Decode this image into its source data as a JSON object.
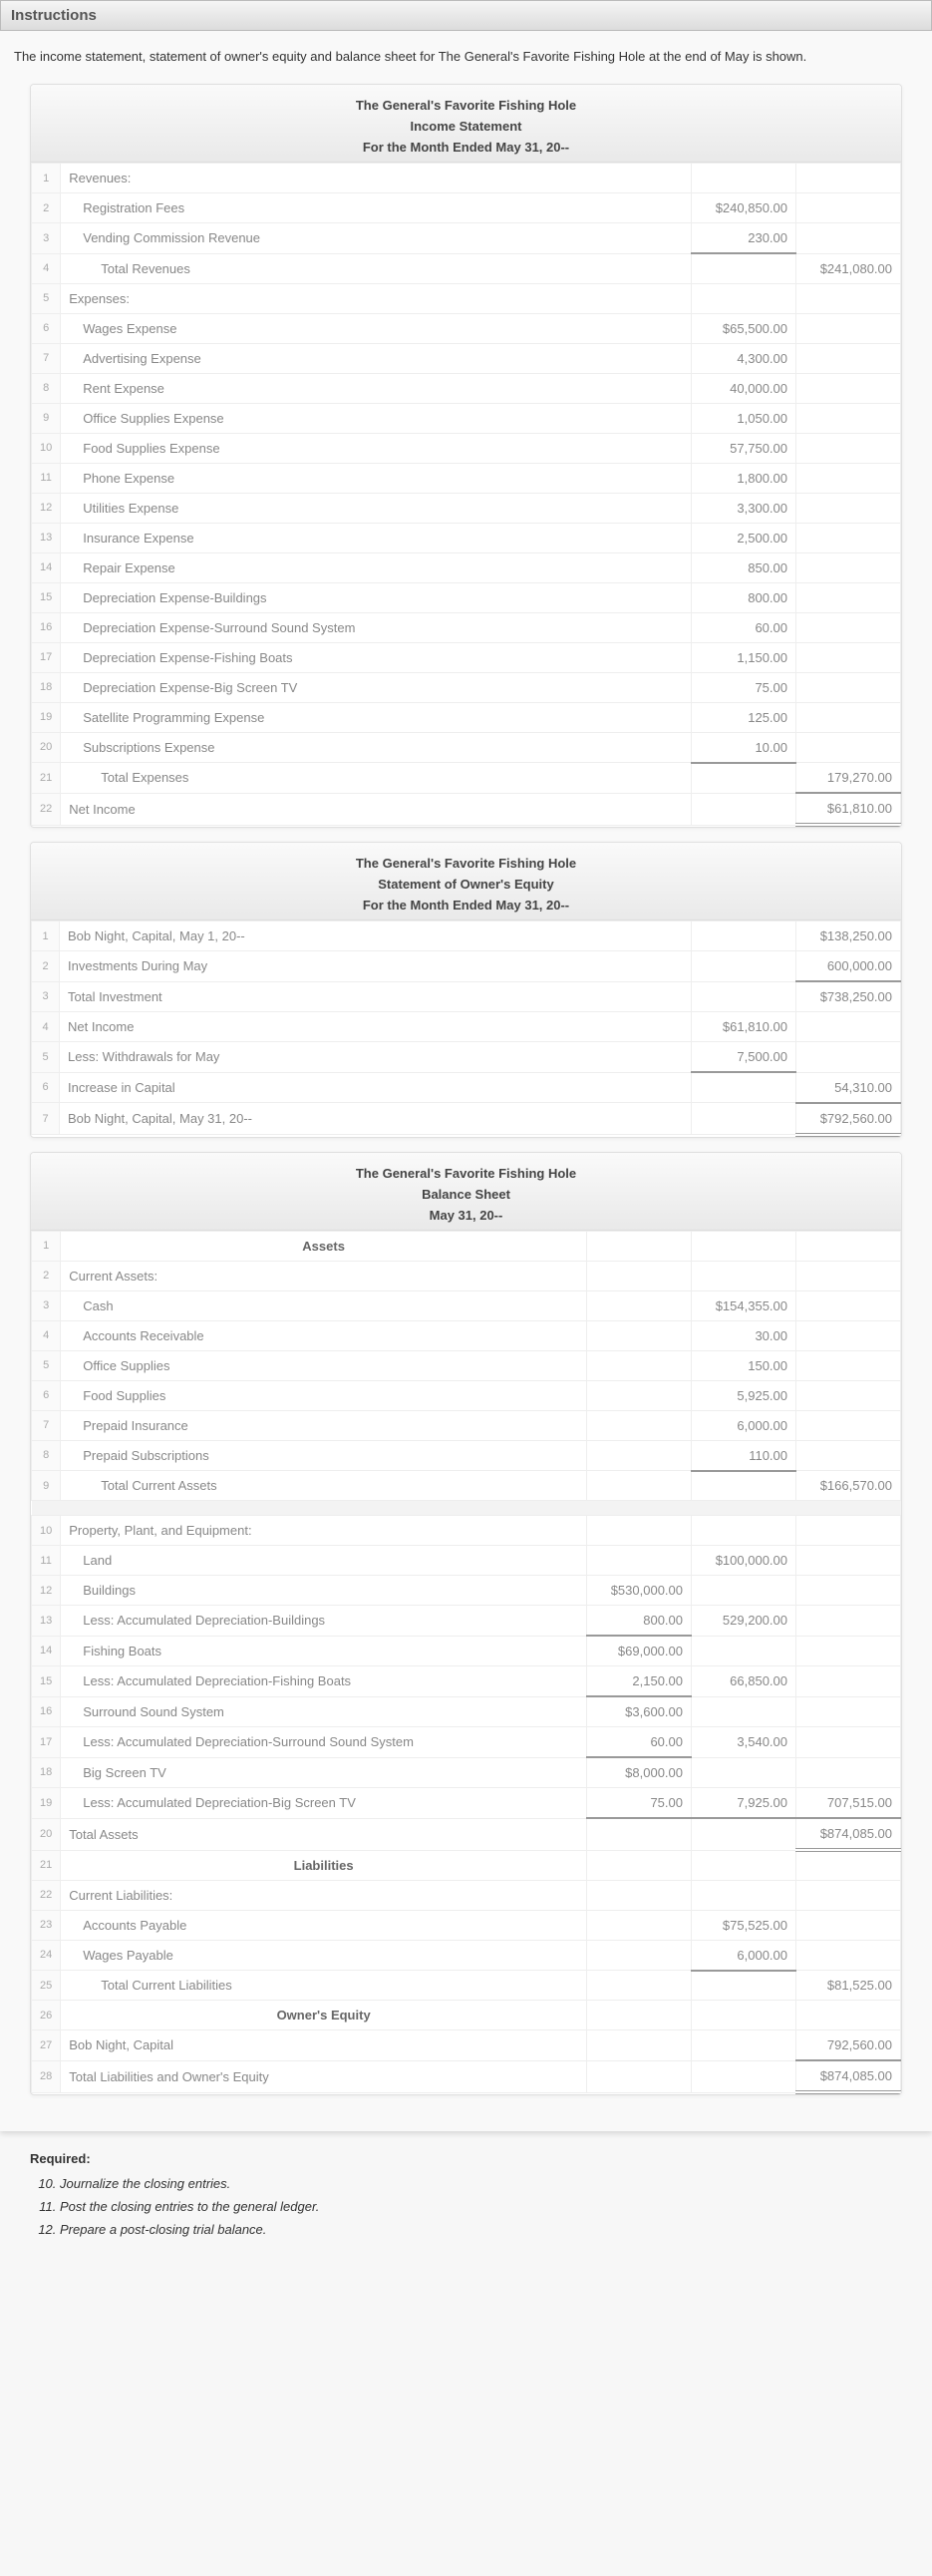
{
  "header": "Instructions",
  "intro": "The income statement, statement of owner's equity and balance sheet for The General's Favorite Fishing Hole at the end of May is shown.",
  "company": "The General's Favorite Fishing Hole",
  "period_long": "For the Month Ended May 31, 20--",
  "period_short": "May 31, 20--",
  "income_statement": {
    "title": "Income Statement",
    "rows": [
      {
        "n": 1,
        "desc": "Revenues:",
        "c1": "",
        "c2": ""
      },
      {
        "n": 2,
        "desc": "Registration Fees",
        "indent": 1,
        "c1": "$240,850.00",
        "c2": ""
      },
      {
        "n": 3,
        "desc": "Vending Commission Revenue",
        "indent": 1,
        "c1": "230.00",
        "c2": "",
        "c1_bb": true
      },
      {
        "n": 4,
        "desc": "Total Revenues",
        "indent": 2,
        "c1": "",
        "c2": "$241,080.00"
      },
      {
        "n": 5,
        "desc": "Expenses:",
        "c1": "",
        "c2": ""
      },
      {
        "n": 6,
        "desc": "Wages Expense",
        "indent": 1,
        "c1": "$65,500.00",
        "c2": ""
      },
      {
        "n": 7,
        "desc": "Advertising Expense",
        "indent": 1,
        "c1": "4,300.00",
        "c2": ""
      },
      {
        "n": 8,
        "desc": "Rent Expense",
        "indent": 1,
        "c1": "40,000.00",
        "c2": ""
      },
      {
        "n": 9,
        "desc": "Office Supplies Expense",
        "indent": 1,
        "c1": "1,050.00",
        "c2": ""
      },
      {
        "n": 10,
        "desc": "Food Supplies Expense",
        "indent": 1,
        "c1": "57,750.00",
        "c2": ""
      },
      {
        "n": 11,
        "desc": "Phone Expense",
        "indent": 1,
        "c1": "1,800.00",
        "c2": ""
      },
      {
        "n": 12,
        "desc": "Utilities Expense",
        "indent": 1,
        "c1": "3,300.00",
        "c2": ""
      },
      {
        "n": 13,
        "desc": "Insurance Expense",
        "indent": 1,
        "c1": "2,500.00",
        "c2": ""
      },
      {
        "n": 14,
        "desc": "Repair Expense",
        "indent": 1,
        "c1": "850.00",
        "c2": ""
      },
      {
        "n": 15,
        "desc": "Depreciation Expense-Buildings",
        "indent": 1,
        "c1": "800.00",
        "c2": ""
      },
      {
        "n": 16,
        "desc": "Depreciation Expense-Surround Sound System",
        "indent": 1,
        "c1": "60.00",
        "c2": ""
      },
      {
        "n": 17,
        "desc": "Depreciation Expense-Fishing Boats",
        "indent": 1,
        "c1": "1,150.00",
        "c2": ""
      },
      {
        "n": 18,
        "desc": "Depreciation Expense-Big Screen TV",
        "indent": 1,
        "c1": "75.00",
        "c2": ""
      },
      {
        "n": 19,
        "desc": "Satellite Programming Expense",
        "indent": 1,
        "c1": "125.00",
        "c2": ""
      },
      {
        "n": 20,
        "desc": "Subscriptions Expense",
        "indent": 1,
        "c1": "10.00",
        "c2": "",
        "c1_bb": true
      },
      {
        "n": 21,
        "desc": "Total Expenses",
        "indent": 2,
        "c1": "",
        "c2": "179,270.00",
        "c2_bb": true
      },
      {
        "n": 22,
        "desc": "Net Income",
        "c1": "",
        "c2": "$61,810.00",
        "c2_dbl": true
      }
    ]
  },
  "owners_equity": {
    "title": "Statement of Owner's Equity",
    "rows": [
      {
        "n": 1,
        "desc": "Bob Night, Capital, May 1, 20--",
        "c1": "",
        "c2": "$138,250.00"
      },
      {
        "n": 2,
        "desc": "Investments During May",
        "c1": "",
        "c2": "600,000.00",
        "c2_bb": true
      },
      {
        "n": 3,
        "desc": "Total Investment",
        "c1": "",
        "c2": "$738,250.00"
      },
      {
        "n": 4,
        "desc": "Net Income",
        "c1": "$61,810.00",
        "c2": ""
      },
      {
        "n": 5,
        "desc": "Less: Withdrawals for May",
        "c1": "7,500.00",
        "c2": "",
        "c1_bb": true
      },
      {
        "n": 6,
        "desc": "Increase in Capital",
        "c1": "",
        "c2": "54,310.00",
        "c2_bb": true
      },
      {
        "n": 7,
        "desc": "Bob Night, Capital, May 31, 20--",
        "c1": "",
        "c2": "$792,560.00",
        "c2_dbl": true
      }
    ]
  },
  "balance_sheet": {
    "title": "Balance Sheet",
    "rows": [
      {
        "n": 1,
        "sect": "Assets"
      },
      {
        "n": 2,
        "desc": "Current Assets:"
      },
      {
        "n": 3,
        "desc": "Cash",
        "indent": 1,
        "c2": "$154,355.00"
      },
      {
        "n": 4,
        "desc": "Accounts Receivable",
        "indent": 1,
        "c2": "30.00"
      },
      {
        "n": 5,
        "desc": "Office Supplies",
        "indent": 1,
        "c2": "150.00"
      },
      {
        "n": 6,
        "desc": "Food Supplies",
        "indent": 1,
        "c2": "5,925.00"
      },
      {
        "n": 7,
        "desc": "Prepaid Insurance",
        "indent": 1,
        "c2": "6,000.00"
      },
      {
        "n": 8,
        "desc": "Prepaid Subscriptions",
        "indent": 1,
        "c2": "110.00",
        "c2_bb": true
      },
      {
        "n": 9,
        "desc": "Total Current Assets",
        "indent": 2,
        "c3": "$166,570.00"
      },
      {
        "spacer": true
      },
      {
        "n": 10,
        "desc": "Property, Plant, and Equipment:"
      },
      {
        "n": 11,
        "desc": "Land",
        "indent": 1,
        "c2": "$100,000.00"
      },
      {
        "n": 12,
        "desc": "Buildings",
        "indent": 1,
        "c1": "$530,000.00"
      },
      {
        "n": 13,
        "desc": "Less: Accumulated Depreciation-Buildings",
        "indent": 1,
        "c1": "800.00",
        "c1_bb": true,
        "c2": "529,200.00"
      },
      {
        "n": 14,
        "desc": "Fishing Boats",
        "indent": 1,
        "c1": "$69,000.00"
      },
      {
        "n": 15,
        "desc": "Less: Accumulated Depreciation-Fishing Boats",
        "indent": 1,
        "c1": "2,150.00",
        "c1_bb": true,
        "c2": "66,850.00"
      },
      {
        "n": 16,
        "desc": "Surround Sound System",
        "indent": 1,
        "c1": "$3,600.00"
      },
      {
        "n": 17,
        "desc": "Less: Accumulated Depreciation-Surround Sound System",
        "indent": 1,
        "c1": "60.00",
        "c1_bb": true,
        "c2": "3,540.00"
      },
      {
        "n": 18,
        "desc": "Big Screen TV",
        "indent": 1,
        "c1": "$8,000.00"
      },
      {
        "n": 19,
        "desc": "Less: Accumulated Depreciation-Big Screen TV",
        "indent": 1,
        "c1": "75.00",
        "c1_bb": true,
        "c2": "7,925.00",
        "c2_bb": true,
        "c3": "707,515.00",
        "c3_bb": true
      },
      {
        "n": 20,
        "desc": "Total Assets",
        "c3": "$874,085.00",
        "c3_dbl": true
      },
      {
        "n": 21,
        "sect": "Liabilities"
      },
      {
        "n": 22,
        "desc": "Current Liabilities:"
      },
      {
        "n": 23,
        "desc": "Accounts Payable",
        "indent": 1,
        "c2": "$75,525.00"
      },
      {
        "n": 24,
        "desc": "Wages Payable",
        "indent": 1,
        "c2": "6,000.00",
        "c2_bb": true
      },
      {
        "n": 25,
        "desc": "Total Current Liabilities",
        "indent": 2,
        "c3": "$81,525.00"
      },
      {
        "n": 26,
        "sect": "Owner's Equity"
      },
      {
        "n": 27,
        "desc": "Bob Night, Capital",
        "c3": "792,560.00",
        "c3_bb": true
      },
      {
        "n": 28,
        "desc": "Total Liabilities and Owner's Equity",
        "c3": "$874,085.00",
        "c3_dbl": true
      }
    ]
  },
  "required": {
    "title": "Required:",
    "start": 10,
    "items": [
      "Journalize the closing entries.",
      "Post the closing entries to the general ledger.",
      "Prepare a post-closing trial balance."
    ]
  }
}
